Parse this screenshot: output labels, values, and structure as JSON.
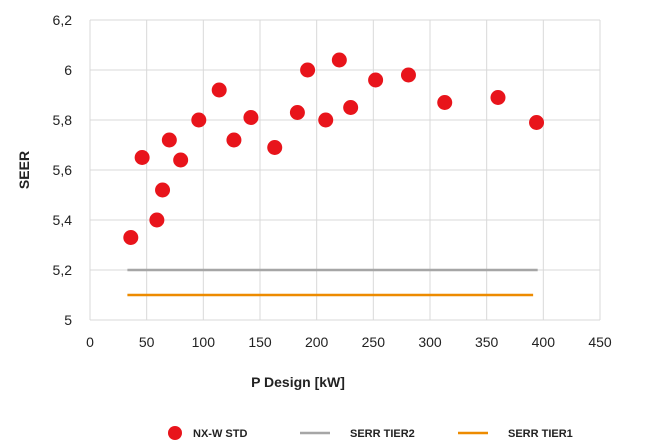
{
  "chart_data": {
    "type": "scatter",
    "xlabel": "P Design [kW]",
    "ylabel": "SEER",
    "xlim": [
      0,
      450
    ],
    "ylim": [
      5.0,
      6.2
    ],
    "x_ticks": [
      0,
      50,
      100,
      150,
      200,
      250,
      300,
      350,
      400,
      450
    ],
    "x_tick_labels": [
      "0",
      "50",
      "100",
      "150",
      "200",
      "250",
      "300",
      "350",
      "400",
      "450"
    ],
    "y_ticks": [
      5.0,
      5.2,
      5.4,
      5.6,
      5.8,
      6.0,
      6.2
    ],
    "y_tick_labels": [
      "5",
      "5,2",
      "5,4",
      "5,6",
      "5,8",
      "6",
      "6,2"
    ],
    "grid": true,
    "legend_position": "bottom",
    "series": [
      {
        "name": "NX-W STD",
        "type": "scatter",
        "color": "#e8141b",
        "points": [
          [
            36,
            5.33
          ],
          [
            46,
            5.65
          ],
          [
            59,
            5.4
          ],
          [
            64,
            5.52
          ],
          [
            70,
            5.72
          ],
          [
            80,
            5.64
          ],
          [
            96,
            5.8
          ],
          [
            114,
            5.92
          ],
          [
            127,
            5.72
          ],
          [
            142,
            5.81
          ],
          [
            163,
            5.69
          ],
          [
            183,
            5.83
          ],
          [
            192,
            6.0
          ],
          [
            208,
            5.8
          ],
          [
            220,
            6.04
          ],
          [
            230,
            5.85
          ],
          [
            252,
            5.96
          ],
          [
            281,
            5.98
          ],
          [
            313,
            5.87
          ],
          [
            360,
            5.89
          ],
          [
            394,
            5.79
          ]
        ]
      },
      {
        "name": "SERR TIER2",
        "type": "line",
        "color": "#a6a6a6",
        "points": [
          [
            33,
            5.2
          ],
          [
            395,
            5.2
          ]
        ]
      },
      {
        "name": "SERR TIER1",
        "type": "line",
        "color": "#ed8b00",
        "points": [
          [
            33,
            5.1
          ],
          [
            391,
            5.1
          ]
        ]
      }
    ]
  }
}
